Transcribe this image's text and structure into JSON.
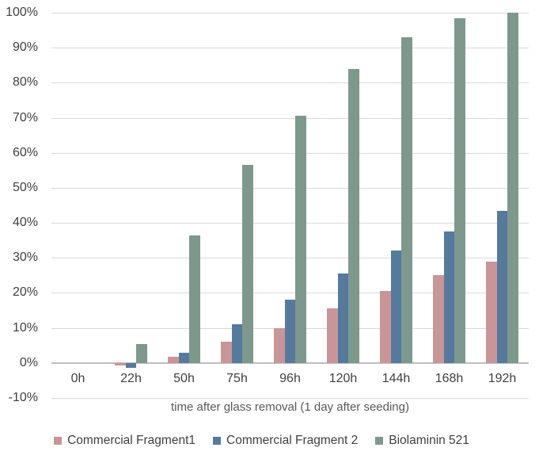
{
  "chart_data": {
    "type": "bar",
    "title": "",
    "xlabel": "time after glass removal (1 day after seeding)",
    "ylabel": "",
    "ylim": [
      -10,
      100
    ],
    "ytick_step": 10,
    "ytick_format": "percent",
    "grid": true,
    "legend_position": "bottom",
    "categories": [
      "0h",
      "22h",
      "50h",
      "75h",
      "96h",
      "120h",
      "144h",
      "168h",
      "192h"
    ],
    "series": [
      {
        "name": "Commercial Fragment1",
        "color": "#c89698",
        "values": [
          0,
          -0.8,
          1.7,
          6,
          10,
          15.5,
          20.5,
          25,
          29
        ]
      },
      {
        "name": "Commercial Fragment 2",
        "color": "#567a9c",
        "values": [
          0,
          -1.5,
          3,
          11,
          18,
          25.5,
          32,
          37.5,
          43.5
        ]
      },
      {
        "name": "Biolaminin 521",
        "color": "#7e988e",
        "values": [
          0,
          5.3,
          36.5,
          56.5,
          70.5,
          84,
          93,
          98.5,
          100
        ]
      }
    ],
    "colors": {
      "gridline": "#d9d9d9",
      "zero_axis_line": "#bfbfbf",
      "axis_text": "#404040",
      "axis_title_text": "#595959"
    }
  }
}
